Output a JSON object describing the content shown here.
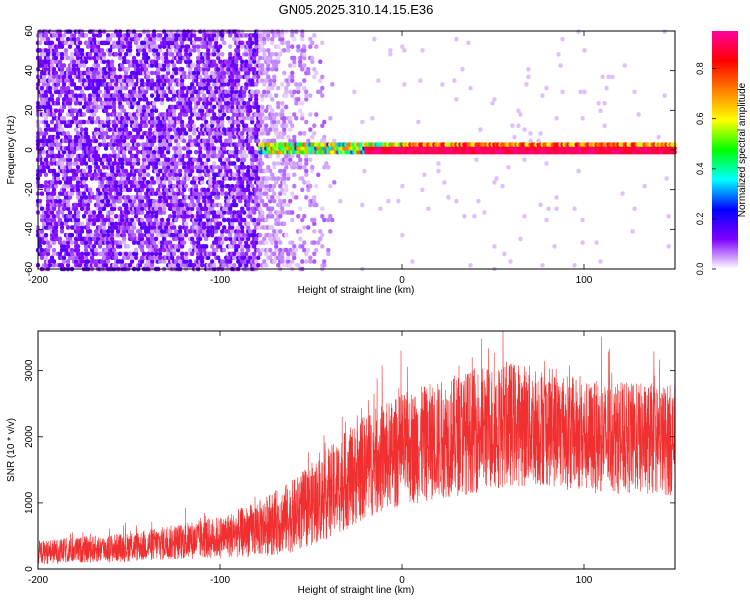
{
  "title": "GN05.2025.310.14.15.E36",
  "chart_data": [
    {
      "type": "heatmap",
      "name": "spectrogram",
      "xlabel": "Height of straight line (km)",
      "ylabel": "Frequency (Hz)",
      "xlim": [
        -200,
        150
      ],
      "ylim": [
        -60,
        60
      ],
      "xticks": [
        -200,
        -100,
        0,
        100
      ],
      "yticks": [
        -60,
        -40,
        -20,
        0,
        20,
        40,
        60
      ],
      "colorbar": {
        "label": "Normalized spectral amplitude",
        "range": [
          0,
          0.95
        ],
        "ticks": [
          "0.0",
          "0.2",
          "0.4",
          "0.6",
          "0.8"
        ],
        "colors": [
          "#ffffff",
          "#8000ff",
          "#0000ff",
          "#00ffff",
          "#00ff00",
          "#ffff00",
          "#ff8000",
          "#ff0000",
          "#ff00a0"
        ]
      },
      "regions": [
        {
          "description": "broadband noise",
          "x_range": [
            -200,
            -78
          ],
          "freq_range": [
            -60,
            60
          ],
          "level": 0.1
        },
        {
          "description": "fading noise",
          "x_range": [
            -78,
            -35
          ],
          "freq_range": [
            -60,
            60
          ],
          "level": 0.04
        },
        {
          "description": "signal band near 0 Hz",
          "x_range": [
            -78,
            150
          ],
          "freq_range": [
            -3,
            3
          ],
          "level": 0.9
        }
      ]
    },
    {
      "type": "line",
      "name": "snr",
      "xlabel": "Height of straight line (km)",
      "ylabel": "SNR (10 * v/v)",
      "xlim": [
        -200,
        150
      ],
      "ylim": [
        0,
        3600
      ],
      "xticks": [
        -200,
        -100,
        0,
        100
      ],
      "yticks": [
        0,
        1000,
        2000,
        3000
      ],
      "color": "#f03030",
      "envelope": {
        "x": [
          -200,
          -150,
          -100,
          -80,
          -60,
          -40,
          -20,
          0,
          20,
          40,
          60,
          80,
          100,
          120,
          150
        ],
        "mean": [
          250,
          330,
          480,
          600,
          800,
          1150,
          1550,
          1800,
          1950,
          2100,
          2200,
          2150,
          2000,
          1980,
          1950
        ],
        "spread": [
          180,
          220,
          320,
          420,
          550,
          700,
          800,
          850,
          900,
          950,
          950,
          900,
          850,
          850,
          850
        ]
      }
    }
  ]
}
